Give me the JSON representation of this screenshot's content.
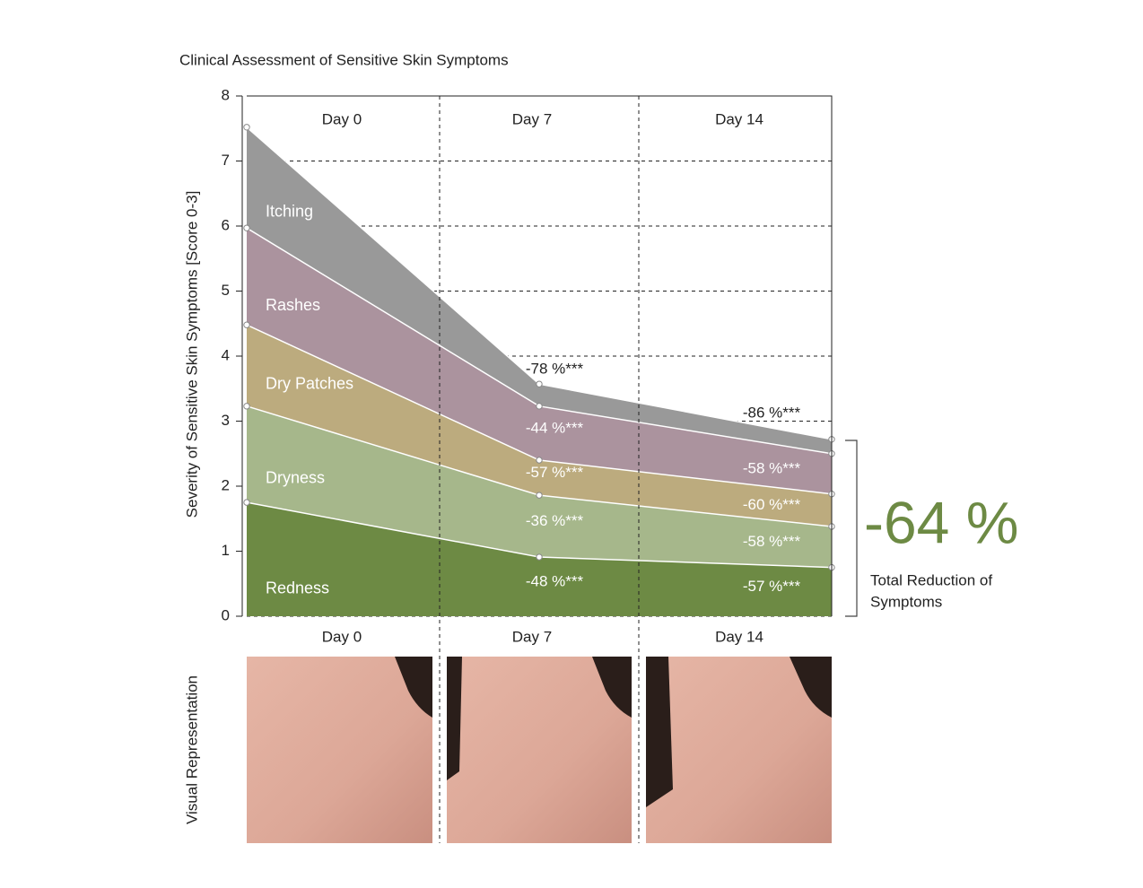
{
  "chart_data": {
    "type": "stacked-area",
    "title": "Clinical Assessment of Sensitive Skin Symptoms",
    "y_label": "Severity of Sensitive Skin Symptoms [Score 0-3]",
    "x": [
      0,
      7,
      14
    ],
    "xlim": [
      0,
      14
    ],
    "ylim": [
      0,
      8
    ],
    "yticks": [
      0,
      1,
      2,
      3,
      4,
      5,
      6,
      7,
      8
    ],
    "grid": true,
    "column_labels": [
      "Day 0",
      "Day 7",
      "Day 14"
    ],
    "series": [
      {
        "name": "Redness",
        "color": "#6d8a44",
        "values": [
          1.75,
          0.91,
          0.75
        ],
        "change_labels": [
          null,
          "-48 %***",
          "-57 %***"
        ]
      },
      {
        "name": "Dryness",
        "color": "#a6b78b",
        "values": [
          1.48,
          0.95,
          0.63
        ],
        "change_labels": [
          null,
          "-36 %***",
          "-58 %***"
        ]
      },
      {
        "name": "Dry Patches",
        "color": "#bcab7e",
        "values": [
          1.25,
          0.54,
          0.5
        ],
        "change_labels": [
          null,
          "-57 %***",
          "-60 %***"
        ]
      },
      {
        "name": "Rashes",
        "color": "#ab939e",
        "values": [
          1.49,
          0.83,
          0.62
        ],
        "change_labels": [
          null,
          "-44 %***",
          "-58 %***"
        ]
      },
      {
        "name": "Itching",
        "color": "#999999",
        "values": [
          1.55,
          0.34,
          0.22
        ],
        "change_labels": [
          null,
          "-78 %***",
          "-86 %***"
        ]
      }
    ],
    "annotations": {
      "headline": "-64 %",
      "caption_lines": [
        "Total Reduction of",
        "Symptoms"
      ],
      "headline_color": "#6d8a44"
    },
    "photo_panel": {
      "y_label": "Visual Representation"
    }
  }
}
